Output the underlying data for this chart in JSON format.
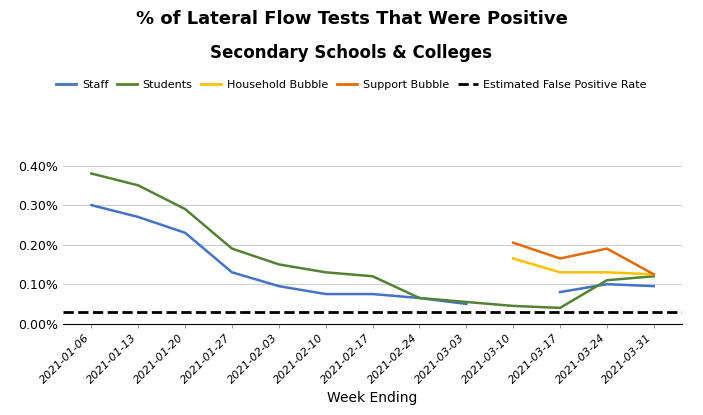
{
  "title1": "% of Lateral Flow Tests That Were Positive",
  "title2": "Secondary Schools & Colleges",
  "xlabel": "Week Ending",
  "dates": [
    "2021-01-06",
    "2021-01-13",
    "2021-01-20",
    "2021-01-27",
    "2021-02-03",
    "2021-02-10",
    "2021-02-17",
    "2021-02-24",
    "2021-03-03",
    "2021-03-10",
    "2021-03-17",
    "2021-03-24",
    "2021-03-31"
  ],
  "staff": [
    0.003,
    0.0027,
    0.0023,
    0.0013,
    0.00095,
    0.00075,
    0.00075,
    0.00065,
    0.0005,
    null,
    0.0008,
    0.001,
    0.00095
  ],
  "students": [
    0.0038,
    0.0035,
    0.0029,
    0.0019,
    0.0015,
    0.0013,
    0.0012,
    0.00065,
    0.00055,
    0.00045,
    0.0004,
    0.0011,
    0.0012
  ],
  "household_bubble": [
    null,
    null,
    null,
    null,
    null,
    null,
    null,
    null,
    null,
    0.00165,
    0.0013,
    0.0013,
    0.00125
  ],
  "support_bubble": [
    null,
    null,
    null,
    null,
    null,
    null,
    null,
    null,
    null,
    0.00205,
    0.00165,
    0.0019,
    0.00125
  ],
  "false_positive_rate": 0.0003,
  "staff_color": "#4472C4",
  "students_color": "#548235",
  "household_color": "#FFC000",
  "support_color": "#E36C09",
  "false_positive_color": "#000000",
  "ylim": [
    0,
    0.0042
  ],
  "yticks": [
    0.0,
    0.001,
    0.002,
    0.003,
    0.004
  ],
  "ytick_labels": [
    "0.00%",
    "0.10%",
    "0.20%",
    "0.30%",
    "0.40%"
  ],
  "legend_labels": [
    "Staff",
    "Students",
    "Household Bubble",
    "Support Bubble",
    "Estimated False Positive Rate"
  ],
  "background_color": "#FFFFFF"
}
